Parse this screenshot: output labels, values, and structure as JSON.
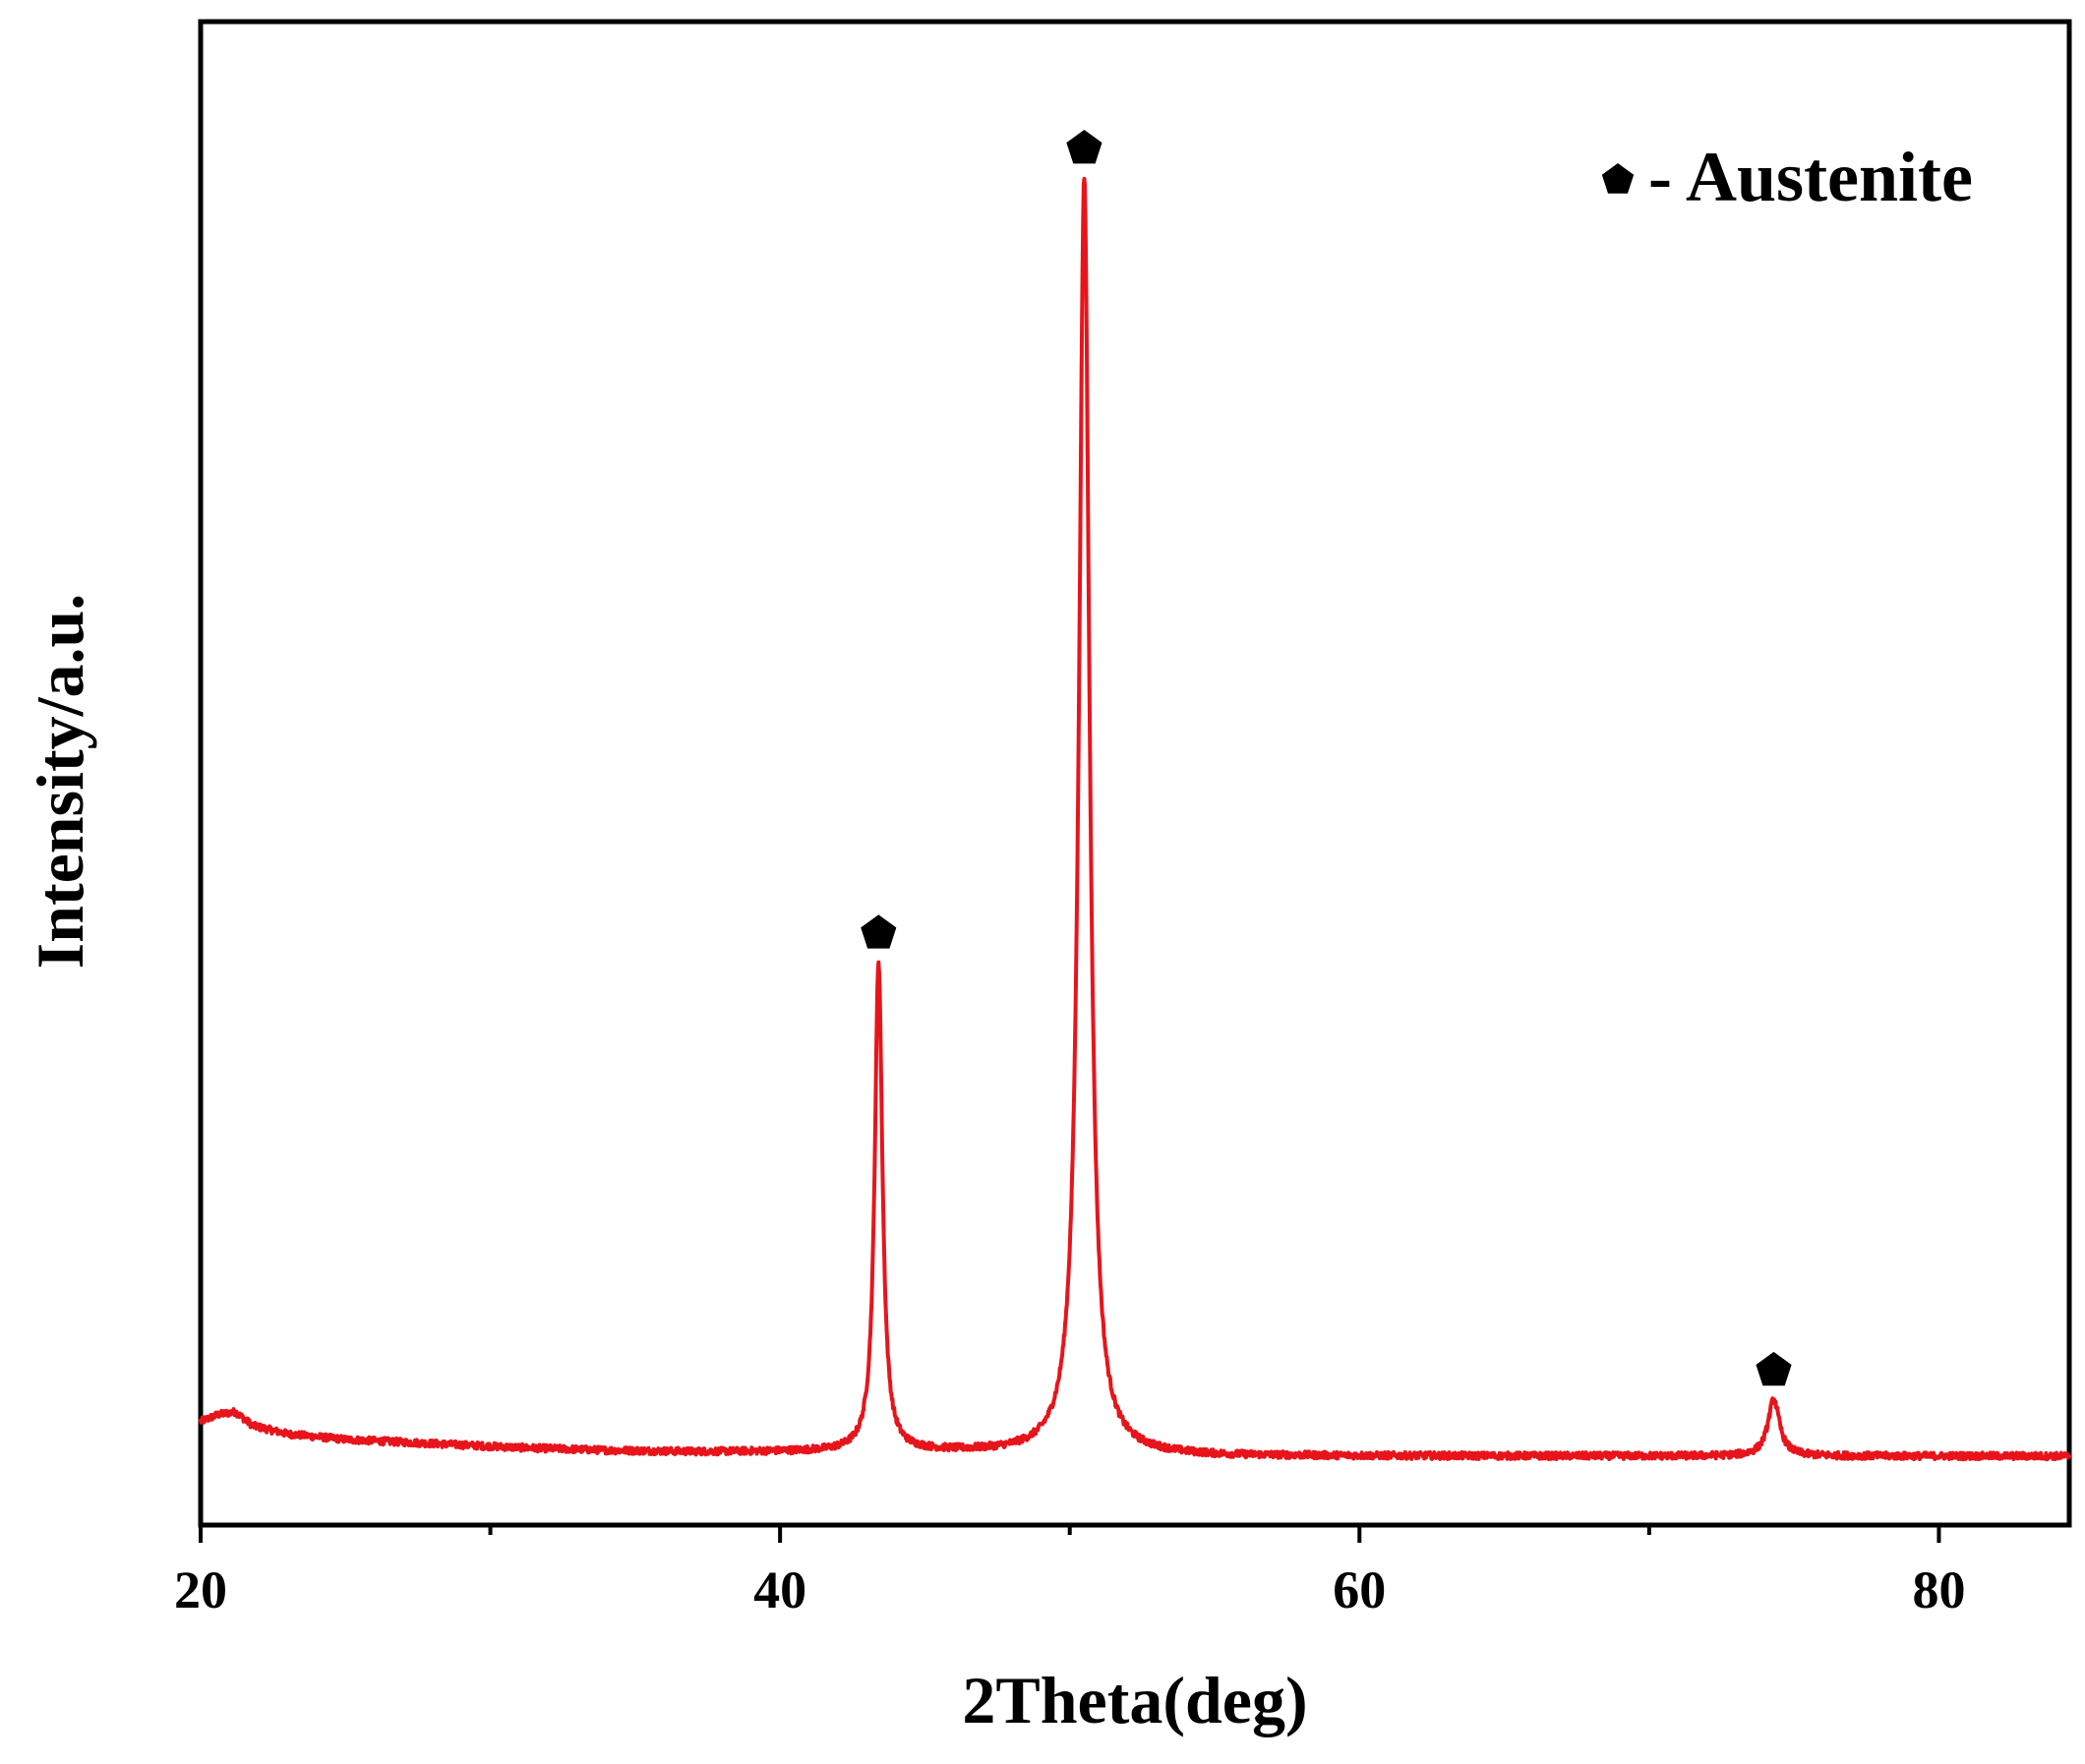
{
  "chart_data": {
    "type": "line",
    "title": "",
    "xlabel": "2Theta(deg)",
    "ylabel": "Intensity/a.u.",
    "xlim": [
      20,
      84.5
    ],
    "ylim": [
      -5,
      104
    ],
    "x_ticks": [
      20,
      40,
      60,
      80
    ],
    "x_tick_labels": [
      "20",
      "40",
      "60",
      "80"
    ],
    "x_minor_ticks": [
      30,
      50,
      70
    ],
    "y_ticks": [],
    "grid": false,
    "legend": {
      "position": "top-right",
      "symbol": "pentagon-icon",
      "text": "- Austenite"
    },
    "colors": {
      "series": "#e8141b",
      "markers": "#000000",
      "frame": "#000000"
    },
    "series": [
      {
        "color": "#e8141b",
        "baseline": [
          [
            20,
            2.5
          ],
          [
            20.6,
            3.0
          ],
          [
            21.2,
            3.2
          ],
          [
            21.8,
            2.2
          ],
          [
            23,
            1.6
          ],
          [
            25,
            1.2
          ],
          [
            28,
            0.9
          ],
          [
            31,
            0.6
          ],
          [
            34,
            0.4
          ],
          [
            37,
            0.3
          ],
          [
            40,
            0.3
          ],
          [
            45,
            0.3
          ],
          [
            50,
            0.2
          ],
          [
            55,
            0.0
          ],
          [
            60,
            0.0
          ],
          [
            65,
            0.0
          ],
          [
            70,
            0.0
          ],
          [
            75,
            0.0
          ],
          [
            80,
            0.0
          ],
          [
            84.5,
            0.0
          ]
        ],
        "peaks": [
          {
            "center": 43.4,
            "height": 35.5,
            "width": 0.16
          },
          {
            "center": 50.5,
            "height": 92.5,
            "width": 0.22
          },
          {
            "center": 74.3,
            "height": 4.1,
            "width": 0.24
          }
        ],
        "noise_amplitude": 0.25
      }
    ],
    "peak_markers": [
      {
        "x": 43.4,
        "y": 37.9,
        "symbol": "pentagon-icon"
      },
      {
        "x": 50.5,
        "y": 94.8,
        "symbol": "pentagon-icon"
      },
      {
        "x": 74.3,
        "y": 6.2,
        "symbol": "pentagon-icon"
      }
    ]
  }
}
